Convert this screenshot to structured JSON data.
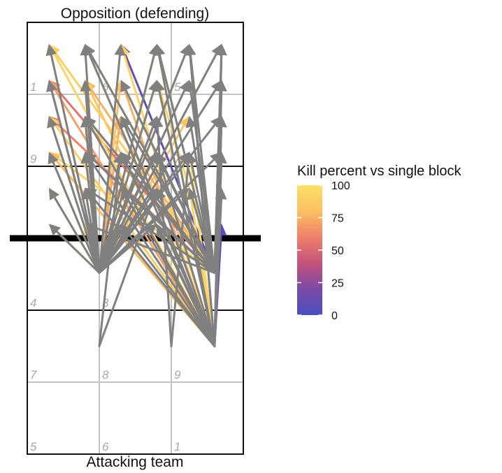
{
  "chart_data": {
    "type": "attack-arrows",
    "title_top": "Opposition (defending)",
    "title_bottom": "Attacking team",
    "court": {
      "x_range": [
        0.5,
        3.5
      ],
      "y_range": [
        0.5,
        6.5
      ],
      "net_y": 3.5,
      "attack_line_y": [
        2.5,
        4.5
      ],
      "zone_labels": [
        {
          "zone": "4",
          "col": 1,
          "row": 3
        },
        {
          "zone": "3",
          "col": 2,
          "row": 3
        },
        {
          "zone": "7",
          "col": 1,
          "row": 2
        },
        {
          "zone": "8",
          "col": 2,
          "row": 2
        },
        {
          "zone": "9",
          "col": 3,
          "row": 2
        },
        {
          "zone": "5",
          "col": 1,
          "row": 1
        },
        {
          "zone": "6",
          "col": 2,
          "row": 1
        },
        {
          "zone": "1",
          "col": 3,
          "row": 1
        },
        {
          "zone": "1",
          "col": 1,
          "row": 6
        },
        {
          "zone": "6",
          "col": 2,
          "row": 6
        },
        {
          "zone": "5",
          "col": 3,
          "row": 6
        },
        {
          "zone": "9",
          "col": 1,
          "row": 5
        },
        {
          "zone": "7",
          "col": 3,
          "row": 5
        },
        {
          "zone": "4",
          "col": 3,
          "row": 4
        }
      ]
    },
    "legend": {
      "title": "Kill percent vs single block",
      "ticks": [
        0,
        25,
        50,
        75,
        100
      ],
      "colors": [
        "#4b4fbf",
        "#7a4aa6",
        "#c4537a",
        "#ef7f6b",
        "#fbc062",
        "#fde16a"
      ]
    },
    "grey_color": "#808080",
    "origins": {
      "A": [
        1.5,
        3.02
      ],
      "B": [
        3.1,
        3.02
      ],
      "C": [
        3.1,
        2.0
      ],
      "D": [
        1.5,
        2.0
      ],
      "E": [
        2.5,
        2.0
      ]
    },
    "targets": [
      [
        0.8,
        6.2
      ],
      [
        1.3,
        6.2
      ],
      [
        1.8,
        6.2
      ],
      [
        2.3,
        6.2
      ],
      [
        2.75,
        6.2
      ],
      [
        3.2,
        6.2
      ],
      [
        0.8,
        5.7
      ],
      [
        1.3,
        5.7
      ],
      [
        1.8,
        5.7
      ],
      [
        2.3,
        5.7
      ],
      [
        2.75,
        5.7
      ],
      [
        3.2,
        5.7
      ],
      [
        0.8,
        5.2
      ],
      [
        1.3,
        5.2
      ],
      [
        1.8,
        5.2
      ],
      [
        2.3,
        5.2
      ],
      [
        2.75,
        5.2
      ],
      [
        3.2,
        5.2
      ],
      [
        0.8,
        4.7
      ],
      [
        1.3,
        4.7
      ],
      [
        1.8,
        4.7
      ],
      [
        2.3,
        4.7
      ],
      [
        2.75,
        4.7
      ],
      [
        3.2,
        4.7
      ],
      [
        0.8,
        4.2
      ],
      [
        1.3,
        4.2
      ],
      [
        1.8,
        4.2
      ],
      [
        2.3,
        4.2
      ],
      [
        2.75,
        4.2
      ],
      [
        3.2,
        4.2
      ],
      [
        0.8,
        3.7
      ],
      [
        1.3,
        3.7
      ],
      [
        1.8,
        3.7
      ],
      [
        2.3,
        3.7
      ],
      [
        2.75,
        3.7
      ],
      [
        3.2,
        3.7
      ]
    ],
    "attacks": [
      {
        "from": "A",
        "to": 0,
        "kill": 95
      },
      {
        "from": "A",
        "to": 6,
        "kill": 15
      },
      {
        "from": "A",
        "to": 12,
        "kill": 90
      },
      {
        "from": "A",
        "to": 18,
        "kill": 80
      },
      {
        "from": "A",
        "to": 24,
        "kill": 88
      },
      {
        "from": "A",
        "to": 30,
        "kill": 92
      },
      {
        "from": "A",
        "to": 7,
        "kill": 70
      },
      {
        "from": "A",
        "to": 13,
        "kill": 82
      },
      {
        "from": "A",
        "to": 19,
        "kill": 96
      },
      {
        "from": "A",
        "to": 25,
        "kill": 90
      },
      {
        "from": "A",
        "to": 31,
        "kill": 98
      },
      {
        "from": "A",
        "to": 8,
        "kill": 85
      },
      {
        "from": "A",
        "to": 14,
        "kill": 72
      },
      {
        "from": "A",
        "to": 20,
        "kill": 90
      },
      {
        "from": "A",
        "to": 26,
        "kill": 85
      },
      {
        "from": "A",
        "to": 32,
        "kill": 94
      },
      {
        "from": "A",
        "to": 3,
        "kill": 90
      },
      {
        "from": "A",
        "to": 9,
        "kill": 86
      },
      {
        "from": "A",
        "to": 15,
        "kill": 78
      },
      {
        "from": "A",
        "to": 21,
        "kill": 92
      },
      {
        "from": "A",
        "to": 27,
        "kill": 88
      },
      {
        "from": "A",
        "to": 4,
        "kill": 90
      },
      {
        "from": "A",
        "to": 16,
        "kill": 84
      },
      {
        "from": "A",
        "to": 22,
        "kill": 96
      },
      {
        "from": "A",
        "to": 10,
        "kill": 92
      },
      {
        "from": "A",
        "to": 5,
        "kill": 80
      },
      {
        "from": "B",
        "to": 0,
        "kill": 88
      },
      {
        "from": "B",
        "to": 6,
        "kill": 55
      },
      {
        "from": "B",
        "to": 12,
        "kill": 60
      },
      {
        "from": "B",
        "to": 18,
        "kill": 92
      },
      {
        "from": "B",
        "to": 1,
        "kill": 85
      },
      {
        "from": "B",
        "to": 7,
        "kill": 75
      },
      {
        "from": "B",
        "to": 13,
        "kill": 80
      },
      {
        "from": "B",
        "to": 2,
        "kill": 10
      },
      {
        "from": "B",
        "to": 8,
        "kill": 88
      },
      {
        "from": "B",
        "to": 14,
        "kill": 90
      },
      {
        "from": "B",
        "to": 3,
        "kill": 95
      },
      {
        "from": "B",
        "to": 9,
        "kill": 92
      },
      {
        "from": "B",
        "to": 4,
        "kill": 93
      },
      {
        "from": "B",
        "to": 10,
        "kill": 90
      },
      {
        "from": "B",
        "to": 5,
        "kill": 55
      },
      {
        "from": "B",
        "to": 11,
        "kill": 55
      },
      {
        "from": "B",
        "to": 17,
        "kill": 55
      },
      {
        "from": "B",
        "to": 23,
        "kill": 55
      },
      {
        "from": "B",
        "to": 29,
        "kill": 8
      },
      {
        "from": "B",
        "to": 35,
        "kill": 8
      },
      {
        "from": "C",
        "to": 0,
        "kill": 92
      },
      {
        "from": "C",
        "to": 6,
        "kill": 70
      },
      {
        "from": "C",
        "to": 12,
        "kill": 88
      },
      {
        "from": "C",
        "to": 18,
        "kill": 78
      },
      {
        "from": "C",
        "to": 1,
        "kill": 90
      },
      {
        "from": "C",
        "to": 7,
        "kill": 84
      },
      {
        "from": "C",
        "to": 13,
        "kill": 95
      },
      {
        "from": "C",
        "to": 2,
        "kill": 90
      },
      {
        "from": "C",
        "to": 8,
        "kill": 75
      },
      {
        "from": "C",
        "to": 3,
        "kill": 92
      },
      {
        "from": "C",
        "to": 9,
        "kill": 80
      },
      {
        "from": "C",
        "to": 4,
        "kill": 8
      },
      {
        "from": "C",
        "to": 5,
        "kill": 52
      },
      {
        "from": "C",
        "to": 11,
        "kill": 60
      },
      {
        "from": "C",
        "to": 17,
        "kill": 50
      },
      {
        "from": "C",
        "to": 23,
        "kill": 45
      },
      {
        "from": "C",
        "to": 29,
        "kill": 10
      },
      {
        "from": "C",
        "to": 35,
        "kill": 5
      },
      {
        "from": "C",
        "to": 22,
        "kill": 96
      },
      {
        "from": "C",
        "to": 28,
        "kill": 90
      },
      {
        "from": "C",
        "to": 34,
        "kill": 88
      }
    ],
    "grey_attacks": [
      {
        "from": "A",
        "to": 0
      },
      {
        "from": "A",
        "to": 1
      },
      {
        "from": "A",
        "to": 2
      },
      {
        "from": "A",
        "to": 3
      },
      {
        "from": "A",
        "to": 4
      },
      {
        "from": "A",
        "to": 5
      },
      {
        "from": "A",
        "to": 6
      },
      {
        "from": "A",
        "to": 7
      },
      {
        "from": "A",
        "to": 9
      },
      {
        "from": "A",
        "to": 10
      },
      {
        "from": "A",
        "to": 11
      },
      {
        "from": "A",
        "to": 12
      },
      {
        "from": "A",
        "to": 13
      },
      {
        "from": "A",
        "to": 15
      },
      {
        "from": "A",
        "to": 17
      },
      {
        "from": "A",
        "to": 18
      },
      {
        "from": "A",
        "to": 19
      },
      {
        "from": "A",
        "to": 20
      },
      {
        "from": "A",
        "to": 21
      },
      {
        "from": "A",
        "to": 22
      },
      {
        "from": "A",
        "to": 23
      },
      {
        "from": "A",
        "to": 24
      },
      {
        "from": "A",
        "to": 25
      },
      {
        "from": "A",
        "to": 27
      },
      {
        "from": "A",
        "to": 28
      },
      {
        "from": "A",
        "to": 30
      },
      {
        "from": "A",
        "to": 32
      },
      {
        "from": "A",
        "to": 33
      },
      {
        "from": "B",
        "to": 1
      },
      {
        "from": "B",
        "to": 3
      },
      {
        "from": "B",
        "to": 4
      },
      {
        "from": "B",
        "to": 5
      },
      {
        "from": "B",
        "to": 8
      },
      {
        "from": "B",
        "to": 10
      },
      {
        "from": "B",
        "to": 11
      },
      {
        "from": "B",
        "to": 13
      },
      {
        "from": "B",
        "to": 14
      },
      {
        "from": "B",
        "to": 16
      },
      {
        "from": "B",
        "to": 17
      },
      {
        "from": "B",
        "to": 19
      },
      {
        "from": "B",
        "to": 20
      },
      {
        "from": "B",
        "to": 21
      },
      {
        "from": "B",
        "to": 22
      },
      {
        "from": "B",
        "to": 23
      },
      {
        "from": "B",
        "to": 25
      },
      {
        "from": "B",
        "to": 26
      },
      {
        "from": "B",
        "to": 28
      },
      {
        "from": "B",
        "to": 31
      },
      {
        "from": "C",
        "to": 1
      },
      {
        "from": "C",
        "to": 3
      },
      {
        "from": "C",
        "to": 4
      },
      {
        "from": "C",
        "to": 5
      },
      {
        "from": "C",
        "to": 9
      },
      {
        "from": "C",
        "to": 11
      },
      {
        "from": "C",
        "to": 13
      },
      {
        "from": "C",
        "to": 14
      },
      {
        "from": "C",
        "to": 17
      },
      {
        "from": "C",
        "to": 19
      },
      {
        "from": "C",
        "to": 20
      },
      {
        "from": "C",
        "to": 21
      },
      {
        "from": "C",
        "to": 23
      },
      {
        "from": "C",
        "to": 25
      },
      {
        "from": "C",
        "to": 26
      },
      {
        "from": "C",
        "to": 27
      },
      {
        "from": "C",
        "to": 29
      },
      {
        "from": "C",
        "to": 32
      },
      {
        "from": "C",
        "to": 33
      },
      {
        "from": "D",
        "to": 20
      },
      {
        "from": "D",
        "to": 27
      },
      {
        "from": "E",
        "to": 15
      },
      {
        "from": "E",
        "to": 22
      }
    ]
  }
}
